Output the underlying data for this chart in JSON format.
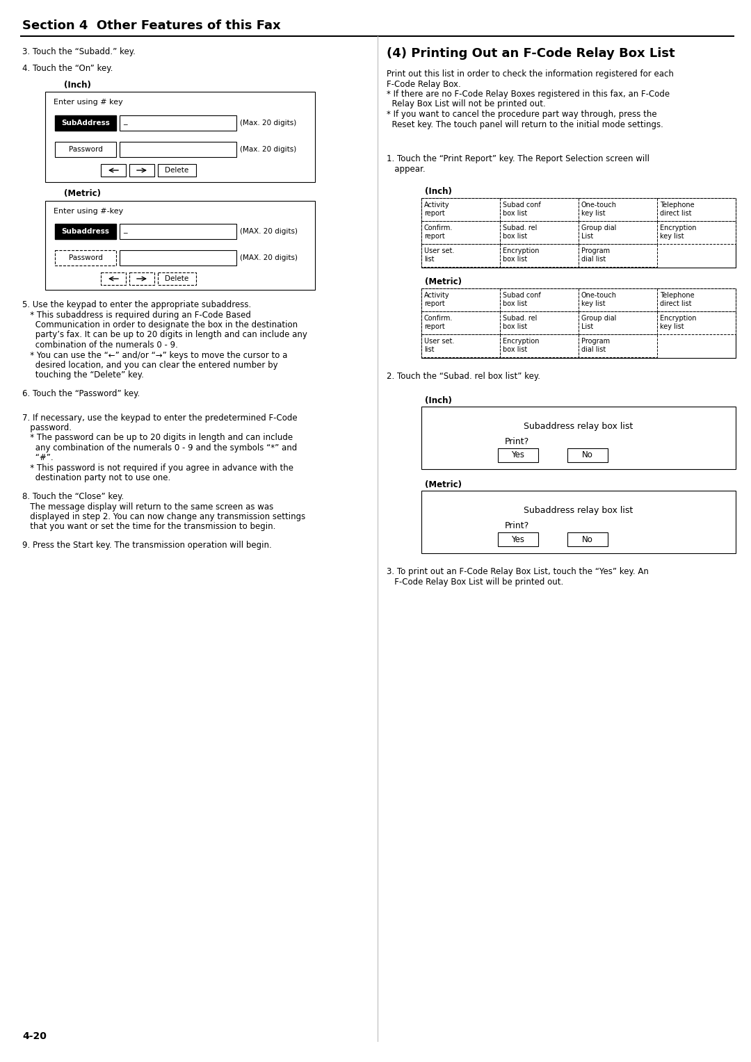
{
  "page_bg": "#ffffff",
  "section_title": "Section 4  Other Features of this Fax",
  "step3_text": "3. Touch the “Subadd.” key.",
  "step4_text": "4. Touch the “On” key.",
  "inch_label1": "(Inch)",
  "metric_label1": "(Metric)",
  "box1_title": "Enter using # key",
  "box2_title": "Enter using #-key",
  "subaddress_inch": "SubAddress",
  "subaddress_metric": "Subaddress",
  "password_label": "Password",
  "max20_inch": "(Max. 20 digits)",
  "max20_metric": "(MAX. 20 digits)",
  "delete_label": "Delete",
  "step5_lines": [
    "5. Use the keypad to enter the appropriate subaddress.",
    "   * This subaddress is required during an F-Code Based",
    "     Communication in order to designate the box in the destination",
    "     party’s fax. It can be up to 20 digits in length and can include any",
    "     combination of the numerals 0 - 9.",
    "   * You can use the “←” and/or “→” keys to move the cursor to a",
    "     desired location, and you can clear the entered number by",
    "     touching the “Delete” key."
  ],
  "step6_text": "6. Touch the “Password” key.",
  "step7_lines": [
    "7. If necessary, use the keypad to enter the predetermined F-Code",
    "   password.",
    "   * The password can be up to 20 digits in length and can include",
    "     any combination of the numerals 0 - 9 and the symbols “*” and",
    "     “#”.",
    "   * This password is not required if you agree in advance with the",
    "     destination party not to use one."
  ],
  "step8_lines": [
    "8. Touch the “Close” key.",
    "   The message display will return to the same screen as was",
    "   displayed in step 2. You can now change any transmission settings",
    "   that you want or set the time for the transmission to begin."
  ],
  "step9_text": "9. Press the Start key. The transmission operation will begin.",
  "page_num": "4-20",
  "right_title": "(4) Printing Out an F-Code Relay Box List",
  "right_intro_lines": [
    "Print out this list in order to check the information registered for each",
    "F-Code Relay Box.",
    "* If there are no F-Code Relay Boxes registered in this fax, an F-Code",
    "  Relay Box List will not be printed out.",
    "* If you want to cancel the procedure part way through, press the",
    "  Reset key. The touch panel will return to the initial mode settings."
  ],
  "step1_right_lines": [
    "1. Touch the “Print Report” key. The Report Selection screen will",
    "   appear."
  ],
  "inch_label2": "(Inch)",
  "metric_label2": "(Metric)",
  "grid_buttons": [
    [
      "Activity\nreport",
      "Subad conf\nbox list",
      "One-touch\nkey list",
      "Telephone\ndirect list"
    ],
    [
      "Confirm.\nreport",
      "Subad. rel\nbox list",
      "Group dial\nList",
      "Encryption\nkey list"
    ],
    [
      "User set.\nlist",
      "Encryption\nbox list",
      "Program\ndial list",
      ""
    ]
  ],
  "step2_right": "2. Touch the “Subad. rel box list” key.",
  "print_box_title": "Subaddress relay box list",
  "print_box_q": "Print?",
  "btn_yes": "Yes",
  "btn_no": "No",
  "step3_right_lines": [
    "3. To print out an F-Code Relay Box List, touch the “Yes” key. An",
    "   F-Code Relay Box List will be printed out."
  ]
}
